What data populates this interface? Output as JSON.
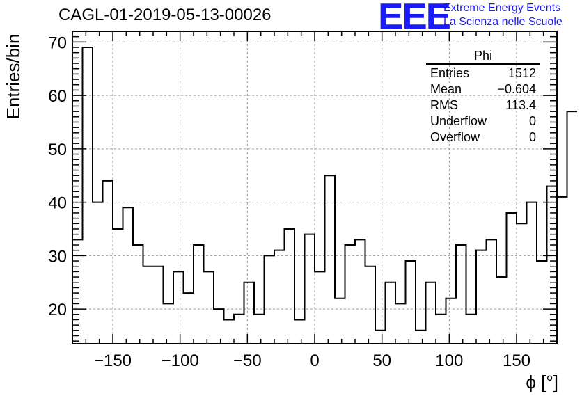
{
  "title": "CAGL-01-2019-05-13-00026",
  "logo": {
    "mark": "EEE",
    "line1": "Extreme Energy Events",
    "line2": "La Scienza nelle Scuole",
    "color": "#1a1aff"
  },
  "stats": {
    "title": "Phi",
    "rows": [
      {
        "label": "Entries",
        "value": "1512"
      },
      {
        "label": "Mean",
        "value": "−0.604"
      },
      {
        "label": "RMS",
        "value": "113.4"
      },
      {
        "label": "Underflow",
        "value": "0"
      },
      {
        "label": "Overflow",
        "value": "0"
      }
    ]
  },
  "chart_data": {
    "type": "histogram",
    "title": "CAGL-01-2019-05-13-00026",
    "xlabel": "ϕ [°]",
    "ylabel": "Entries/bin",
    "xlim": [
      -180,
      180
    ],
    "ylim": [
      13.5,
      72
    ],
    "grid": true,
    "bin_width": 7.5,
    "bin_start": -180,
    "values": [
      33,
      69,
      40,
      44,
      35,
      39,
      32,
      28,
      28,
      21,
      27,
      23,
      32,
      27,
      20,
      18,
      19,
      25,
      19,
      30,
      31,
      35,
      18,
      34,
      27,
      45,
      22,
      32,
      33,
      28,
      16,
      25,
      21,
      29,
      16,
      25,
      19,
      22,
      32,
      19,
      31,
      33,
      26,
      38,
      36,
      40,
      29,
      43,
      41,
      57
    ],
    "xticks": [
      -150,
      -100,
      -50,
      0,
      50,
      100,
      150
    ],
    "xtick_labels": [
      "−150",
      "−100",
      "−50",
      "0",
      "50",
      "100",
      "150"
    ],
    "yticks": [
      20,
      30,
      40,
      50,
      60,
      70
    ],
    "ytick_labels": [
      "20",
      "30",
      "40",
      "50",
      "60",
      "70"
    ]
  }
}
